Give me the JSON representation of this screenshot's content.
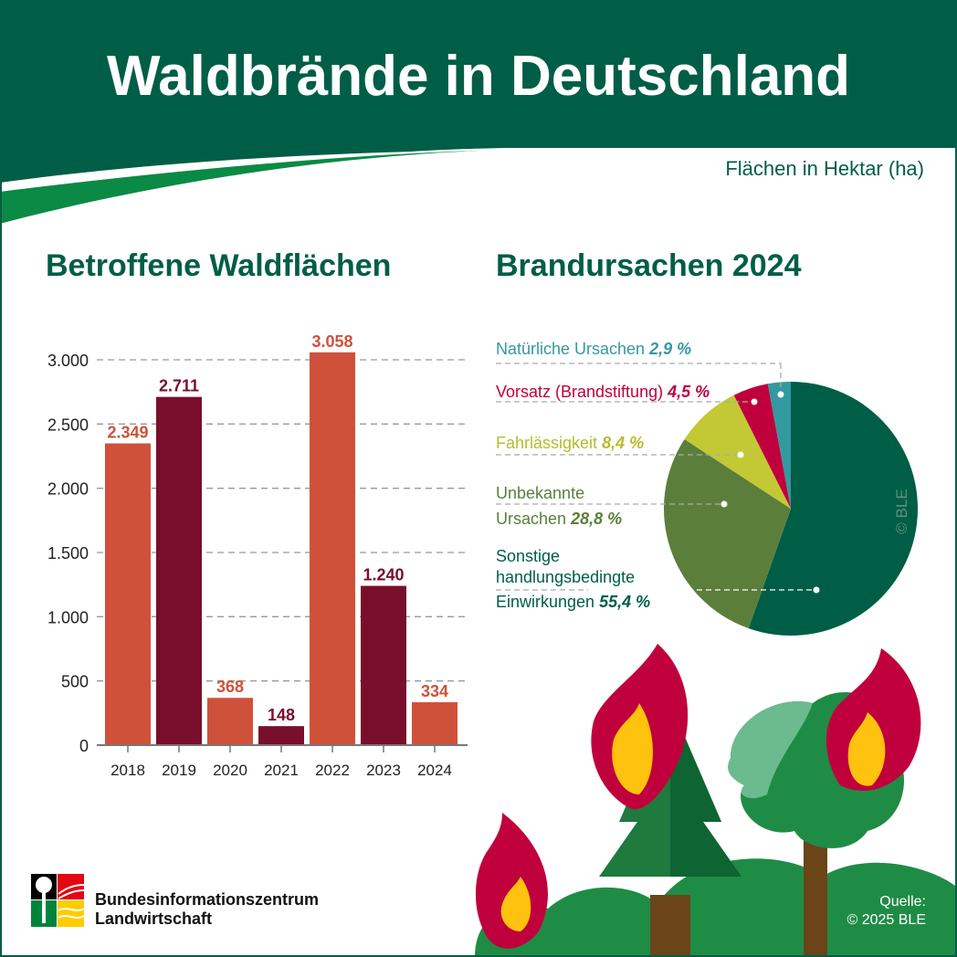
{
  "title": "Waldbrände in Deutschland",
  "unit_note": "Flächen in Hektar (ha)",
  "colors": {
    "header": "#005e46",
    "bar_light": "#cf513a",
    "bar_dark": "#7a0e2d"
  },
  "chart_data": [
    {
      "type": "bar",
      "title": "Betroffene Waldflächen",
      "categories": [
        "2018",
        "2019",
        "2020",
        "2021",
        "2022",
        "2023",
        "2024"
      ],
      "values": [
        2349,
        2711,
        368,
        148,
        3058,
        1240,
        334
      ],
      "value_labels": [
        "2.349",
        "2.711",
        "368",
        "148",
        "3.058",
        "1.240",
        "334"
      ],
      "bar_colors": [
        "#cf513a",
        "#7a0e2d",
        "#cf513a",
        "#7a0e2d",
        "#cf513a",
        "#7a0e2d",
        "#cf513a"
      ],
      "yticks": [
        0,
        500,
        1000,
        1500,
        2000,
        2500,
        3000
      ],
      "ytick_labels": [
        "0",
        "500",
        "1.000",
        "1.500",
        "2.000",
        "2.500",
        "3.000"
      ],
      "ylim": [
        0,
        3000
      ],
      "grid": "dashed horizontal"
    },
    {
      "type": "pie",
      "title": "Brandursachen 2024",
      "slices": [
        {
          "label": "Sonstige handlungsbedingte Einwirkungen",
          "value": 55.4,
          "value_label": "55,4 %",
          "color": "#005e46"
        },
        {
          "label": "Unbekannte Ursachen",
          "value": 28.8,
          "value_label": "28,8 %",
          "color": "#5b7f3a"
        },
        {
          "label": "Fahrlässigkeit",
          "value": 8.4,
          "value_label": "8,4 %",
          "color": "#c2c935"
        },
        {
          "label": "Vorsatz (Brandstiftung)",
          "value": 4.5,
          "value_label": "4,5 %",
          "color": "#c0003c"
        },
        {
          "label": "Natürliche Ursachen",
          "value": 2.9,
          "value_label": "2,9 %",
          "color": "#3399a0"
        }
      ],
      "watermark": "© BLE"
    }
  ],
  "pie_labels": {
    "natural": {
      "text": "Natürliche Ursachen",
      "pct": "2,9 %"
    },
    "arson": {
      "text": "Vorsatz (Brandstiftung)",
      "pct": "4,5 %"
    },
    "negligence": {
      "text": "Fahrlässigkeit",
      "pct": "8,4 %"
    },
    "unknown": {
      "line1": "Unbekannte",
      "line2": "Ursachen",
      "pct": "28,8 %"
    },
    "other": {
      "line1": "Sonstige",
      "line2": "handlungsbedingte",
      "line3": "Einwirkungen",
      "pct": "55,4 %"
    }
  },
  "logo": {
    "line1": "Bundesinformationszentrum",
    "line2": "Landwirtschaft"
  },
  "source": {
    "line1": "Quelle:",
    "line2": "© 2025 BLE"
  }
}
